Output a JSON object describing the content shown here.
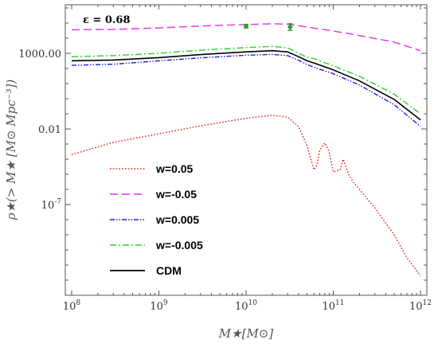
{
  "chart_data": {
    "type": "line",
    "title": "",
    "annotation": "ε = 0.68",
    "xlabel": "M★[M⊙]",
    "ylabel": "ρ★(> M★ [M⊙ Mpc⁻³])",
    "xscale": "log",
    "yscale": "log",
    "xlim": [
      100000000.0,
      1000000000000.0
    ],
    "ylim": [
      1e-13,
      1000000.0
    ],
    "x_ticks": [
      {
        "value": 100000000.0,
        "base": "10",
        "exp": "8"
      },
      {
        "value": 1000000000.0,
        "base": "10",
        "exp": "9"
      },
      {
        "value": 10000000000.0,
        "base": "10",
        "exp": "10"
      },
      {
        "value": 100000000000.0,
        "base": "10",
        "exp": "11"
      },
      {
        "value": 1000000000000.0,
        "base": "10",
        "exp": "12"
      }
    ],
    "y_ticks": [
      {
        "value": 1000,
        "label": "1000.00"
      },
      {
        "value": 0.01,
        "label": "0.01"
      },
      {
        "value": 1e-07,
        "label": "10",
        "exp": "-7"
      }
    ],
    "grid": false,
    "legend_position": "lower-left",
    "series": [
      {
        "name": "w=0.05",
        "color": "#e0201b",
        "dash": "dotted",
        "x": [
          100000000.0,
          300000000.0,
          1000000000.0,
          3000000000.0,
          10000000000.0,
          20000000000.0,
          30000000000.0,
          40000000000.0,
          50000000000.0,
          60000000000.0,
          65000000000.0,
          70000000000.0,
          80000000000.0,
          90000000000.0,
          100000000000.0,
          120000000000.0,
          130000000000.0,
          140000000000.0,
          150000000000.0,
          170000000000.0,
          200000000000.0,
          300000000000.0,
          500000000000.0,
          700000000000.0,
          1000000000000.0
        ],
        "y": [
          0.0002,
          0.0013,
          0.0047,
          0.016,
          0.05,
          0.08,
          0.06,
          0.014,
          0.0008,
          2e-05,
          4e-05,
          0.0004,
          0.0012,
          0.0003,
          1.4e-05,
          2e-05,
          0.0001,
          3e-05,
          1e-05,
          3e-06,
          1e-06,
          6e-08,
          1e-09,
          3e-11,
          2e-12
        ]
      },
      {
        "name": "w=-0.05",
        "color": "#e431e3",
        "dash": "dashed",
        "x": [
          100000000.0,
          300000000.0,
          1000000000.0,
          3000000000.0,
          10000000000.0,
          20000000000.0,
          30000000000.0,
          50000000000.0,
          100000000000.0,
          200000000000.0,
          500000000000.0,
          1000000000000.0
        ],
        "y": [
          36000,
          38000,
          48000,
          64000,
          80000,
          90000,
          85000,
          55000,
          30000,
          15000,
          5500,
          1500
        ]
      },
      {
        "name": "w=0.005",
        "color": "#1d1de0",
        "dash": "dashdotdot",
        "x": [
          100000000.0,
          300000000.0,
          1000000000.0,
          3000000000.0,
          10000000000.0,
          20000000000.0,
          30000000000.0,
          40000000000.0,
          50000000000.0,
          60000000000.0,
          100000000000.0,
          200000000000.0,
          500000000000.0,
          1000000000000.0
        ],
        "y": [
          160,
          190,
          320,
          500,
          750,
          850,
          700,
          350,
          180,
          120,
          45,
          8,
          0.4,
          0.015
        ]
      },
      {
        "name": "w=-0.005",
        "color": "#27d62a",
        "dash": "dashdot",
        "x": [
          100000000.0,
          300000000.0,
          1000000000.0,
          3000000000.0,
          10000000000.0,
          20000000000.0,
          30000000000.0,
          40000000000.0,
          50000000000.0,
          60000000000.0,
          100000000000.0,
          200000000000.0,
          500000000000.0,
          1000000000000.0
        ],
        "y": [
          600,
          700,
          1000,
          1600,
          2400,
          2900,
          2300,
          1000,
          550,
          450,
          150,
          30,
          2,
          0.1
        ]
      },
      {
        "name": "CDM",
        "color": "#000000",
        "dash": "solid",
        "x": [
          100000000.0,
          300000000.0,
          1000000000.0,
          3000000000.0,
          10000000000.0,
          20000000000.0,
          30000000000.0,
          40000000000.0,
          50000000000.0,
          60000000000.0,
          100000000000.0,
          200000000000.0,
          500000000000.0,
          1000000000000.0
        ],
        "y": [
          320,
          360,
          520,
          820,
          1250,
          1500,
          1250,
          600,
          320,
          230,
          80,
          15,
          0.9,
          0.04
        ]
      }
    ],
    "data_points": {
      "color": "#2e9b2e",
      "points": [
        {
          "x": 10000000000.0,
          "y": 63000,
          "err_low": 48000,
          "err_high": 82000
        },
        {
          "x": 32000000000.0,
          "y": 55000,
          "err_low": 33000,
          "err_high": 90000
        }
      ]
    }
  }
}
